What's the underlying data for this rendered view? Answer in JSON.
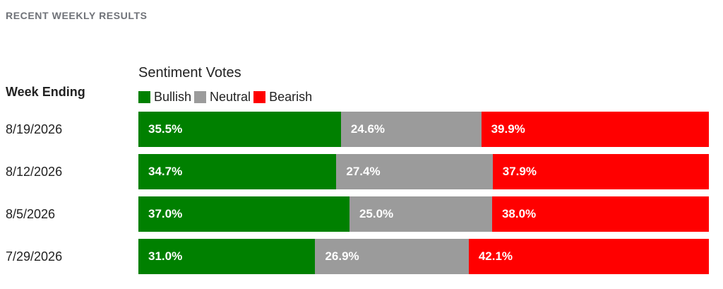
{
  "section_title": "RECENT WEEKLY RESULTS",
  "table_header": "Week Ending",
  "chart_data": {
    "type": "bar",
    "orientation": "horizontal",
    "stacked": true,
    "title": "Sentiment Votes",
    "legend_placement": "top",
    "categories": [
      "8/19/2026",
      "8/12/2026",
      "8/5/2026",
      "7/29/2026"
    ],
    "series": [
      {
        "name": "Bullish",
        "color": "#008000",
        "values": [
          35.5,
          34.7,
          37.0,
          31.0
        ],
        "labels": [
          "35.5%",
          "34.7%",
          "37.0%",
          "31.0%"
        ]
      },
      {
        "name": "Neutral",
        "color": "#9b9b9b",
        "values": [
          24.6,
          27.4,
          25.0,
          26.9
        ],
        "labels": [
          "24.6%",
          "27.4%",
          "25.0%",
          "26.9%"
        ]
      },
      {
        "name": "Bearish",
        "color": "#ff0000",
        "values": [
          39.9,
          37.9,
          38.0,
          42.1
        ],
        "labels": [
          "39.9%",
          "37.9%",
          "38.0%",
          "42.1%"
        ]
      }
    ]
  }
}
